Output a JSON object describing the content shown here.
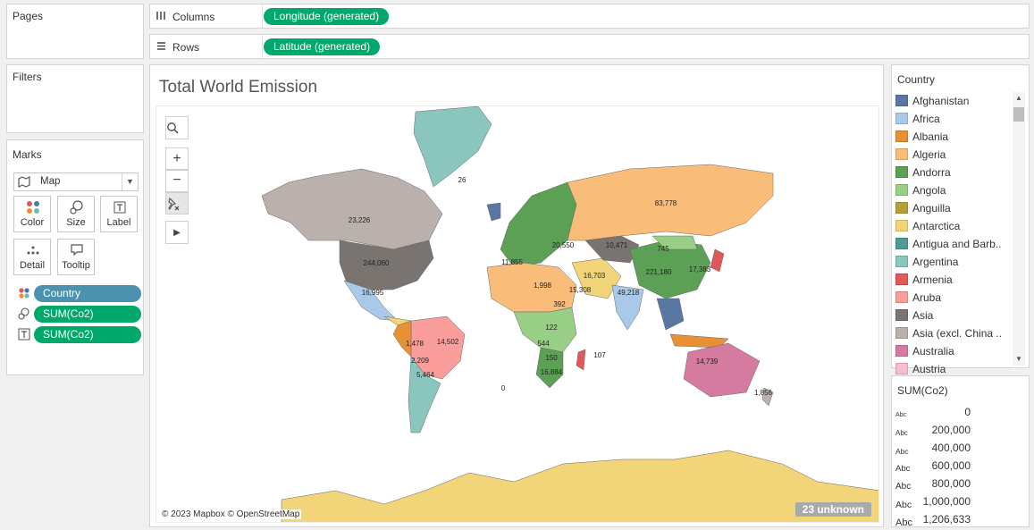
{
  "pages": {
    "title": "Pages"
  },
  "filters": {
    "title": "Filters"
  },
  "marks": {
    "title": "Marks",
    "mark_type": "Map",
    "cards": [
      {
        "label": "Color",
        "icon": "color-dots-icon"
      },
      {
        "label": "Size",
        "icon": "size-icon"
      },
      {
        "label": "Label",
        "icon": "label-t-icon"
      },
      {
        "label": "Detail",
        "icon": "detail-dots-icon"
      },
      {
        "label": "Tooltip",
        "icon": "tooltip-icon"
      }
    ],
    "fields": [
      {
        "label": "Country",
        "icon": "color-dots-icon",
        "color": "#4a92ad"
      },
      {
        "label": "SUM(Co2)",
        "icon": "size-icon",
        "color": "#00a86b"
      },
      {
        "label": "SUM(Co2)",
        "icon": "label-t-icon",
        "color": "#00a86b"
      }
    ]
  },
  "shelves": {
    "columns": {
      "label": "Columns",
      "pill": "Longitude (generated)",
      "icon": "columns-icon"
    },
    "rows": {
      "label": "Rows",
      "pill": "Latitude (generated)",
      "icon": "rows-icon"
    }
  },
  "sheet": {
    "title": "Total World Emission",
    "attribution": "© 2023 Mapbox © OpenStreetMap",
    "unknown_badge": "23 unknown"
  },
  "map_labels": [
    {
      "text": "26"
    },
    {
      "text": "83,778"
    },
    {
      "text": "23,226"
    },
    {
      "text": "244,060"
    },
    {
      "text": "221,180"
    },
    {
      "text": "16,995"
    },
    {
      "text": "14,502"
    },
    {
      "text": "14,739"
    },
    {
      "text": "49,218"
    },
    {
      "text": "10,471"
    },
    {
      "text": "20,550"
    },
    {
      "text": "17,383"
    },
    {
      "text": "5,464"
    },
    {
      "text": "16,884"
    },
    {
      "text": "1,998"
    },
    {
      "text": "15,308"
    },
    {
      "text": "16,703"
    },
    {
      "text": "11,855"
    },
    {
      "text": "2,209"
    },
    {
      "text": "1,478"
    },
    {
      "text": "745"
    },
    {
      "text": "150"
    },
    {
      "text": "544"
    },
    {
      "text": "122"
    },
    {
      "text": "392"
    },
    {
      "text": "1,856"
    },
    {
      "text": "107"
    },
    {
      "text": "0"
    }
  ],
  "country_legend": {
    "title": "Country",
    "items": [
      {
        "label": "Afghanistan",
        "color": "#5878a3"
      },
      {
        "label": "Africa",
        "color": "#a8c9e8"
      },
      {
        "label": "Albania",
        "color": "#e79035"
      },
      {
        "label": "Algeria",
        "color": "#fabd79"
      },
      {
        "label": "Andorra",
        "color": "#5ba054"
      },
      {
        "label": "Angola",
        "color": "#98ce85"
      },
      {
        "label": "Anguilla",
        "color": "#b5a13a"
      },
      {
        "label": "Antarctica",
        "color": "#f2d579"
      },
      {
        "label": "Antigua and Barb..",
        "color": "#4f9a95"
      },
      {
        "label": "Argentina",
        "color": "#8bc6be"
      },
      {
        "label": "Armenia",
        "color": "#e05a5c"
      },
      {
        "label": "Aruba",
        "color": "#fb9d9a"
      },
      {
        "label": "Asia",
        "color": "#7a7470"
      },
      {
        "label": "Asia (excl. China ..",
        "color": "#bab0ac"
      },
      {
        "label": "Australia",
        "color": "#d57b9f"
      },
      {
        "label": "Austria",
        "color": "#f7bcd2"
      }
    ]
  },
  "size_legend": {
    "title": "SUM(Co2)",
    "abc": "Abc",
    "values": [
      "0",
      "200,000",
      "400,000",
      "600,000",
      "800,000",
      "1,000,000",
      "1,206,633"
    ]
  },
  "map_controls": {
    "zoom_in": "+",
    "zoom_out": "−",
    "play": "▶"
  }
}
